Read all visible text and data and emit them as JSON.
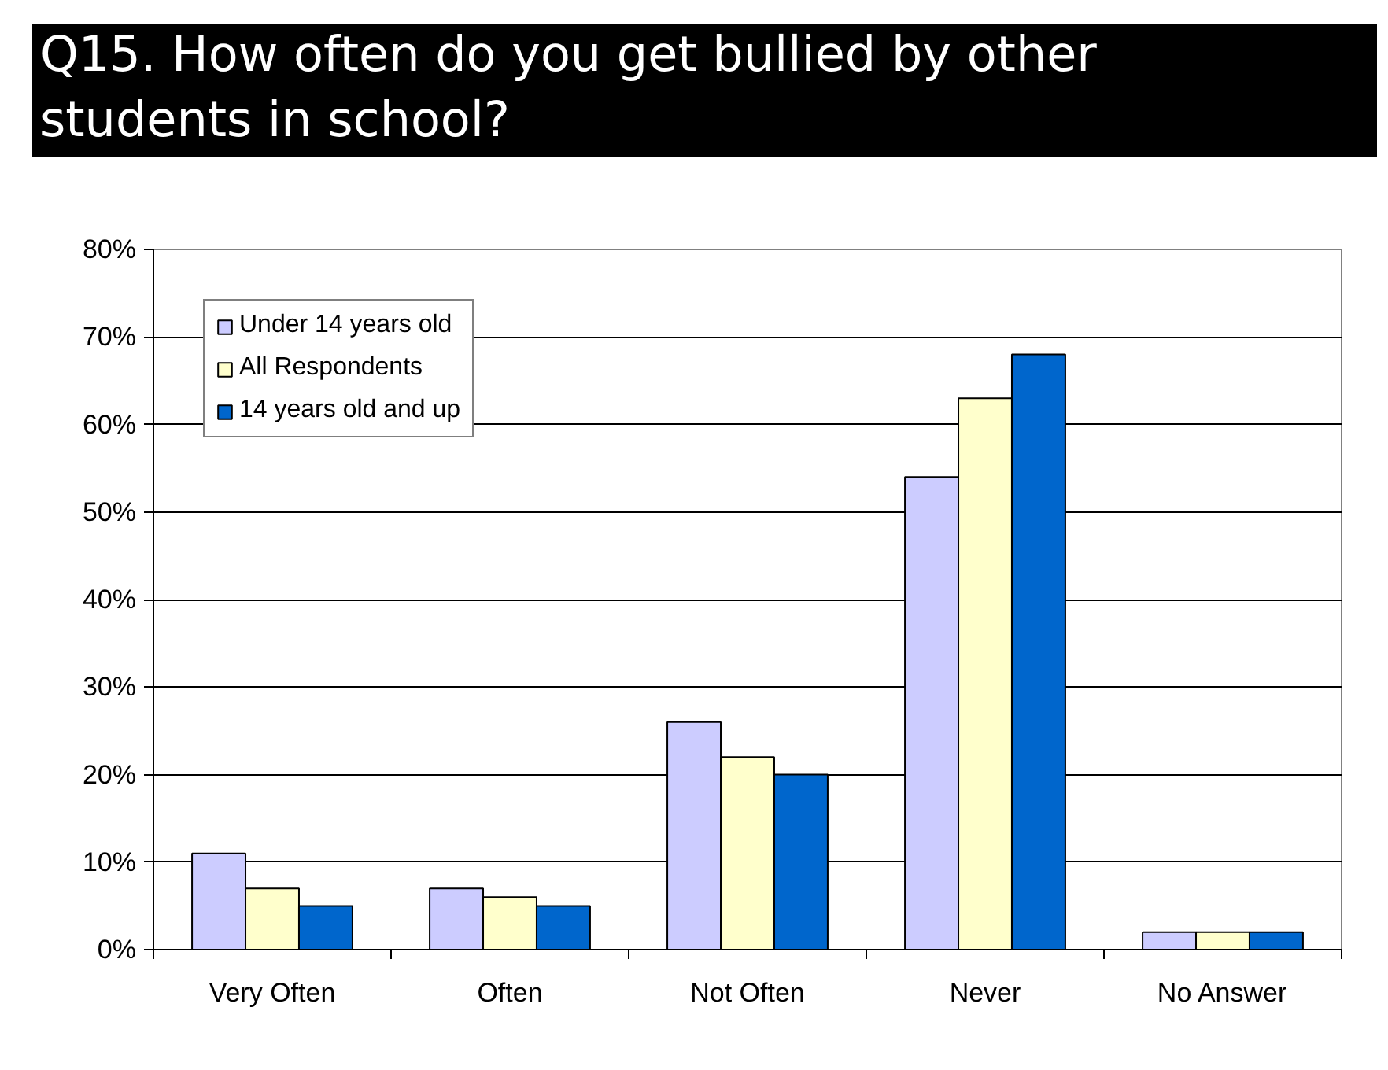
{
  "chart_data": {
    "type": "bar",
    "title": "Q15. How often do you get bullied by other students in school?",
    "categories": [
      "Very Often",
      "Often",
      "Not Often",
      "Never",
      "No Answer"
    ],
    "series": [
      {
        "name": "Under 14 years old",
        "color": "#ccccff",
        "values": [
          11,
          7,
          26,
          54,
          2
        ]
      },
      {
        "name": "All Respondents",
        "color": "#ffffcc",
        "values": [
          7,
          6,
          22,
          63,
          2
        ]
      },
      {
        "name": "14 years old and up",
        "color": "#0066cc",
        "values": [
          5,
          5,
          20,
          68,
          2
        ]
      }
    ],
    "ylim": [
      0,
      80
    ],
    "yticks": [
      {
        "value": 0,
        "label": "0%"
      },
      {
        "value": 10,
        "label": "10%"
      },
      {
        "value": 20,
        "label": "20%"
      },
      {
        "value": 30,
        "label": "30%"
      },
      {
        "value": 40,
        "label": "40%"
      },
      {
        "value": 50,
        "label": "50%"
      },
      {
        "value": 60,
        "label": "60%"
      },
      {
        "value": 70,
        "label": "70%"
      },
      {
        "value": 80,
        "label": "80%"
      }
    ],
    "grid": "y",
    "legend": "top left"
  }
}
